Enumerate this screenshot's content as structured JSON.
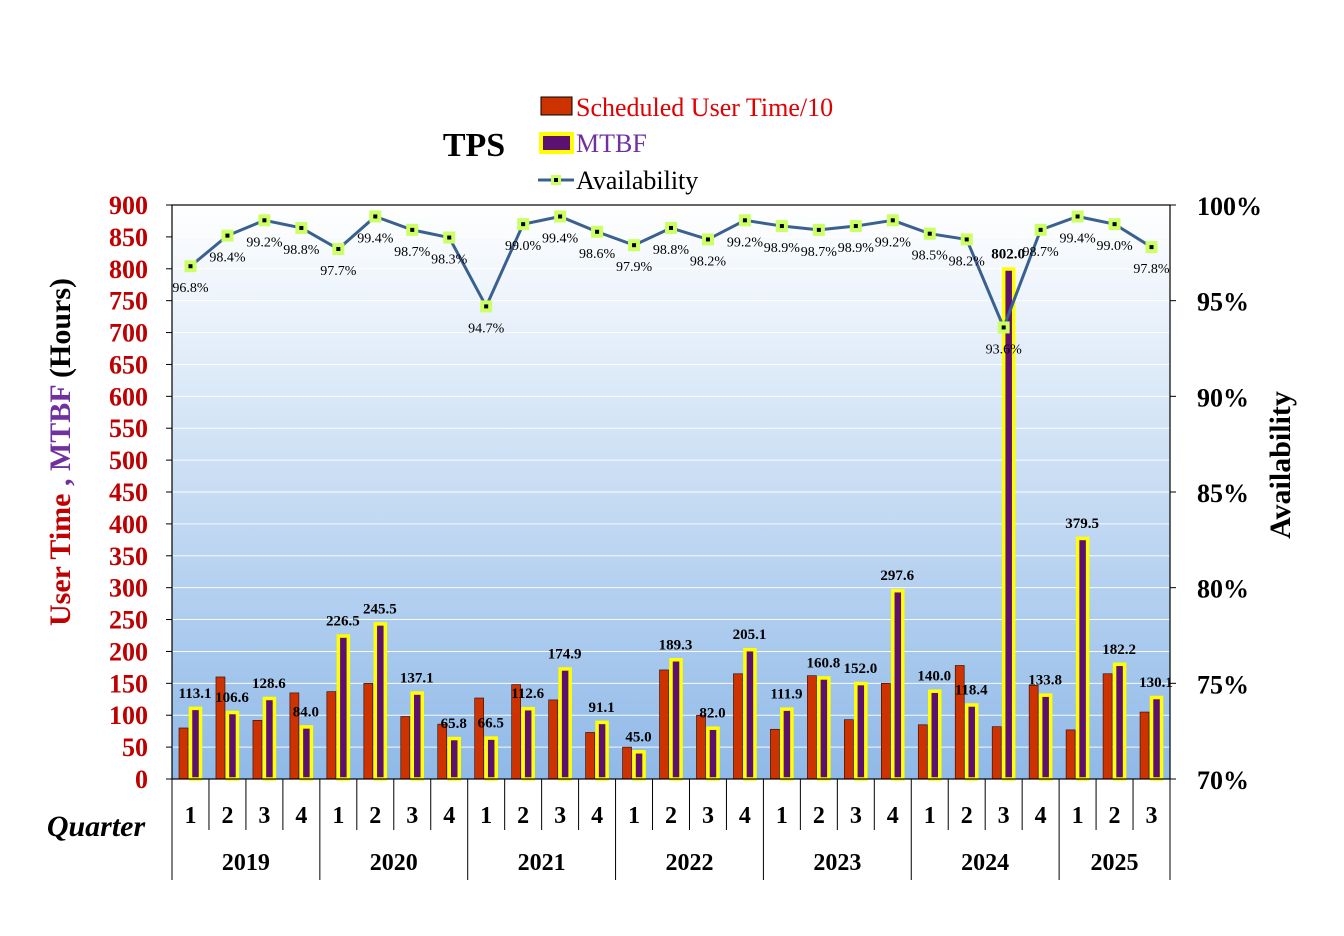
{
  "chart_data": {
    "type": "bar",
    "title": "TPS",
    "legend": {
      "scheduled_label": "Scheduled User Time/10",
      "mtbf_label": "MTBF",
      "availability_label": "Availability"
    },
    "ylabel_parts": [
      "User Time",
      " , ",
      "MTBF",
      " (Hours)"
    ],
    "y2label": "Availability",
    "xlabel": "Quarter",
    "ylim": [
      0,
      900
    ],
    "y2lim": [
      70,
      100
    ],
    "yticks": [
      "0",
      "50",
      "100",
      "150",
      "200",
      "250",
      "300",
      "350",
      "400",
      "450",
      "500",
      "550",
      "600",
      "650",
      "700",
      "750",
      "800",
      "850",
      "900"
    ],
    "y2ticks": [
      "70%",
      "75%",
      "80%",
      "85%",
      "90%",
      "95%",
      "100%"
    ],
    "years": [
      {
        "label": "2019",
        "quarters": 4
      },
      {
        "label": "2020",
        "quarters": 4
      },
      {
        "label": "2021",
        "quarters": 4
      },
      {
        "label": "2022",
        "quarters": 4
      },
      {
        "label": "2023",
        "quarters": 4
      },
      {
        "label": "2024",
        "quarters": 4
      },
      {
        "label": "2025",
        "quarters": 3
      }
    ],
    "categories": [
      "1",
      "2",
      "3",
      "4",
      "1",
      "2",
      "3",
      "4",
      "1",
      "2",
      "3",
      "4",
      "1",
      "2",
      "3",
      "4",
      "1",
      "2",
      "3",
      "4",
      "1",
      "2",
      "3",
      "4",
      "1",
      "2",
      "3"
    ],
    "series": [
      {
        "name": "Scheduled User Time/10",
        "values": [
          80,
          160,
          92,
          135,
          137,
          150,
          98,
          86,
          127,
          148,
          124,
          73,
          50,
          171,
          100,
          165,
          78,
          162,
          93,
          150,
          85,
          178,
          82,
          147,
          77,
          165,
          105
        ]
      },
      {
        "name": "MTBF",
        "values": [
          113.1,
          106.6,
          128.6,
          84.0,
          226.5,
          245.5,
          137.1,
          65.8,
          66.5,
          112.6,
          174.9,
          91.1,
          45.0,
          189.3,
          82.0,
          205.1,
          111.9,
          160.8,
          152.0,
          297.6,
          140.0,
          118.4,
          802.0,
          133.8,
          379.5,
          182.2,
          130.1
        ],
        "labels": [
          "113.1",
          "106.6",
          "128.6",
          "84.0",
          "226.5",
          "245.5",
          "137.1",
          "65.8",
          "66.5",
          "112.6",
          "174.9",
          "91.1",
          "45.0",
          "189.3",
          "82.0",
          "205.1",
          "111.9",
          "160.8",
          "152.0",
          "297.6",
          "140.0",
          "118.4",
          "802.0",
          "133.8",
          "379.5",
          "182.2",
          "130.1"
        ]
      },
      {
        "name": "Availability",
        "values": [
          96.8,
          98.4,
          99.2,
          98.8,
          97.7,
          99.4,
          98.7,
          98.3,
          94.7,
          99.0,
          99.4,
          98.6,
          97.9,
          98.8,
          98.2,
          99.2,
          98.9,
          98.7,
          98.9,
          99.2,
          98.5,
          98.2,
          93.6,
          98.7,
          99.4,
          99.0,
          97.8
        ],
        "labels": [
          "96.8%",
          "98.4%",
          "99.2%",
          "98.8%",
          "97.7%",
          "99.4%",
          "98.7%",
          "98.3%",
          "94.7%",
          "99.0%",
          "99.4%",
          "98.6%",
          "97.9%",
          "98.8%",
          "98.2%",
          "99.2%",
          "98.9%",
          "98.7%",
          "98.9%",
          "99.2%",
          "98.5%",
          "98.2%",
          "93.6%",
          "98.7%",
          "99.4%",
          "99.0%",
          "97.8%"
        ]
      }
    ],
    "colors": {
      "scheduled": "#cc3300",
      "mtbf_fill": "#5c1070",
      "mtbf_border": "#ffff00",
      "availability_line": "#3a6090",
      "availability_marker": "#ccff66",
      "y_axis_text": "#c00000",
      "mtbf_text": "#7030a0",
      "bg_top": "#ffffff",
      "bg_bottom": "#8fb9e8"
    }
  }
}
